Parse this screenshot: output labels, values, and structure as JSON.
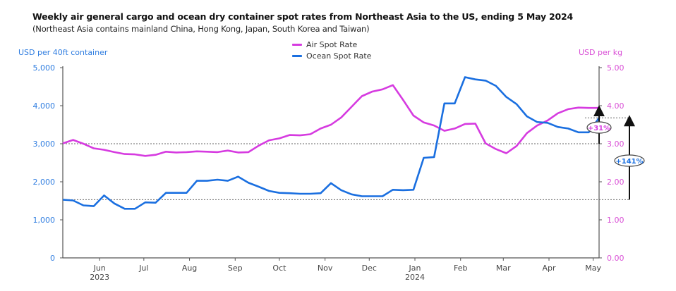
{
  "chart_data": {
    "type": "line",
    "title": "Weekly air general cargo and ocean dry container spot rates from Northeast Asia to the US, ending 5 May 2024",
    "subtitle": "(Northeast Asia contains mainland China, Hong Kong, Japan, South Korea and Taiwan)",
    "ylabel_left": "USD per 40ft container",
    "ylabel_right": "USD per kg",
    "ylim_left": [
      0,
      5000
    ],
    "ylim_right": [
      0,
      5
    ],
    "yticks_left": [
      "0",
      "1,000",
      "2,000",
      "3,000",
      "4,000",
      "5,000"
    ],
    "yticks_right": [
      "0.00",
      "1.00",
      "2.00",
      "3.00",
      "4.00",
      "5.00"
    ],
    "xlim": [
      "2023-05-07",
      "2024-05-05"
    ],
    "xticks": [
      {
        "date": "2023-06-01",
        "label": "Jun",
        "sublabel": "2023"
      },
      {
        "date": "2023-07-01",
        "label": "Jul"
      },
      {
        "date": "2023-08-01",
        "label": "Aug"
      },
      {
        "date": "2023-09-01",
        "label": "Sep"
      },
      {
        "date": "2023-10-01",
        "label": "Oct"
      },
      {
        "date": "2023-11-01",
        "label": "Nov"
      },
      {
        "date": "2023-12-01",
        "label": "Dec"
      },
      {
        "date": "2024-01-01",
        "label": "Jan",
        "sublabel": "2024"
      },
      {
        "date": "2024-02-01",
        "label": "Feb"
      },
      {
        "date": "2024-03-01",
        "label": "Mar"
      },
      {
        "date": "2024-04-01",
        "label": "Apr"
      },
      {
        "date": "2024-05-01",
        "label": "May"
      }
    ],
    "grid": false,
    "legend_placement": "top-center",
    "x": [
      "2023-05-07",
      "2023-05-14",
      "2023-05-21",
      "2023-05-28",
      "2023-06-04",
      "2023-06-11",
      "2023-06-18",
      "2023-06-25",
      "2023-07-02",
      "2023-07-09",
      "2023-07-16",
      "2023-07-23",
      "2023-07-30",
      "2023-08-06",
      "2023-08-13",
      "2023-08-20",
      "2023-08-27",
      "2023-09-03",
      "2023-09-10",
      "2023-09-17",
      "2023-09-24",
      "2023-10-01",
      "2023-10-08",
      "2023-10-15",
      "2023-10-22",
      "2023-10-29",
      "2023-11-05",
      "2023-11-12",
      "2023-11-19",
      "2023-11-26",
      "2023-12-03",
      "2023-12-10",
      "2023-12-17",
      "2023-12-24",
      "2023-12-31",
      "2024-01-07",
      "2024-01-14",
      "2024-01-21",
      "2024-01-28",
      "2024-02-04",
      "2024-02-11",
      "2024-02-18",
      "2024-02-25",
      "2024-03-03",
      "2024-03-10",
      "2024-03-17",
      "2024-03-24",
      "2024-03-31",
      "2024-04-07",
      "2024-04-14",
      "2024-04-21",
      "2024-04-28",
      "2024-05-05"
    ],
    "series": [
      {
        "name": "Air Spot Rate",
        "axis": "right",
        "color": "#d63be0",
        "values": [
          3.01,
          3.1,
          3.0,
          2.88,
          2.84,
          2.78,
          2.73,
          2.72,
          2.68,
          2.71,
          2.79,
          2.77,
          2.78,
          2.8,
          2.79,
          2.78,
          2.82,
          2.77,
          2.78,
          2.95,
          3.09,
          3.14,
          3.23,
          3.22,
          3.25,
          3.4,
          3.5,
          3.69,
          3.97,
          4.25,
          4.37,
          4.43,
          4.54,
          4.15,
          3.74,
          3.56,
          3.48,
          3.34,
          3.4,
          3.52,
          3.53,
          3.01,
          2.86,
          2.75,
          2.94,
          3.28,
          3.48,
          3.61,
          3.8,
          3.91,
          3.95,
          3.94,
          3.94
        ]
      },
      {
        "name": "Ocean Spot Rate",
        "axis": "left",
        "color": "#1a6fe0",
        "values": [
          1530,
          1510,
          1380,
          1360,
          1640,
          1430,
          1290,
          1290,
          1460,
          1450,
          1710,
          1710,
          1710,
          2025,
          2025,
          2055,
          2025,
          2135,
          1975,
          1870,
          1760,
          1710,
          1700,
          1685,
          1685,
          1700,
          1965,
          1780,
          1670,
          1620,
          1620,
          1620,
          1790,
          1780,
          1790,
          2630,
          2650,
          4060,
          4060,
          4750,
          4690,
          4660,
          4520,
          4230,
          4040,
          3720,
          3570,
          3550,
          3440,
          3400,
          3300,
          3300,
          3680
        ]
      }
    ],
    "reference_lines": [
      {
        "axis": "right",
        "value": 3.0
      },
      {
        "axis": "left",
        "value": 1530
      },
      {
        "axis": "left",
        "value": 3680
      }
    ],
    "annotations": [
      {
        "text": "+31%",
        "series": "Air Spot Rate",
        "from": 3.0,
        "to": 3.94,
        "color": "#d63be0"
      },
      {
        "text": "+141%",
        "series": "Ocean Spot Rate",
        "from": 1530,
        "to": 3680,
        "color": "#1a6fe0"
      }
    ]
  }
}
